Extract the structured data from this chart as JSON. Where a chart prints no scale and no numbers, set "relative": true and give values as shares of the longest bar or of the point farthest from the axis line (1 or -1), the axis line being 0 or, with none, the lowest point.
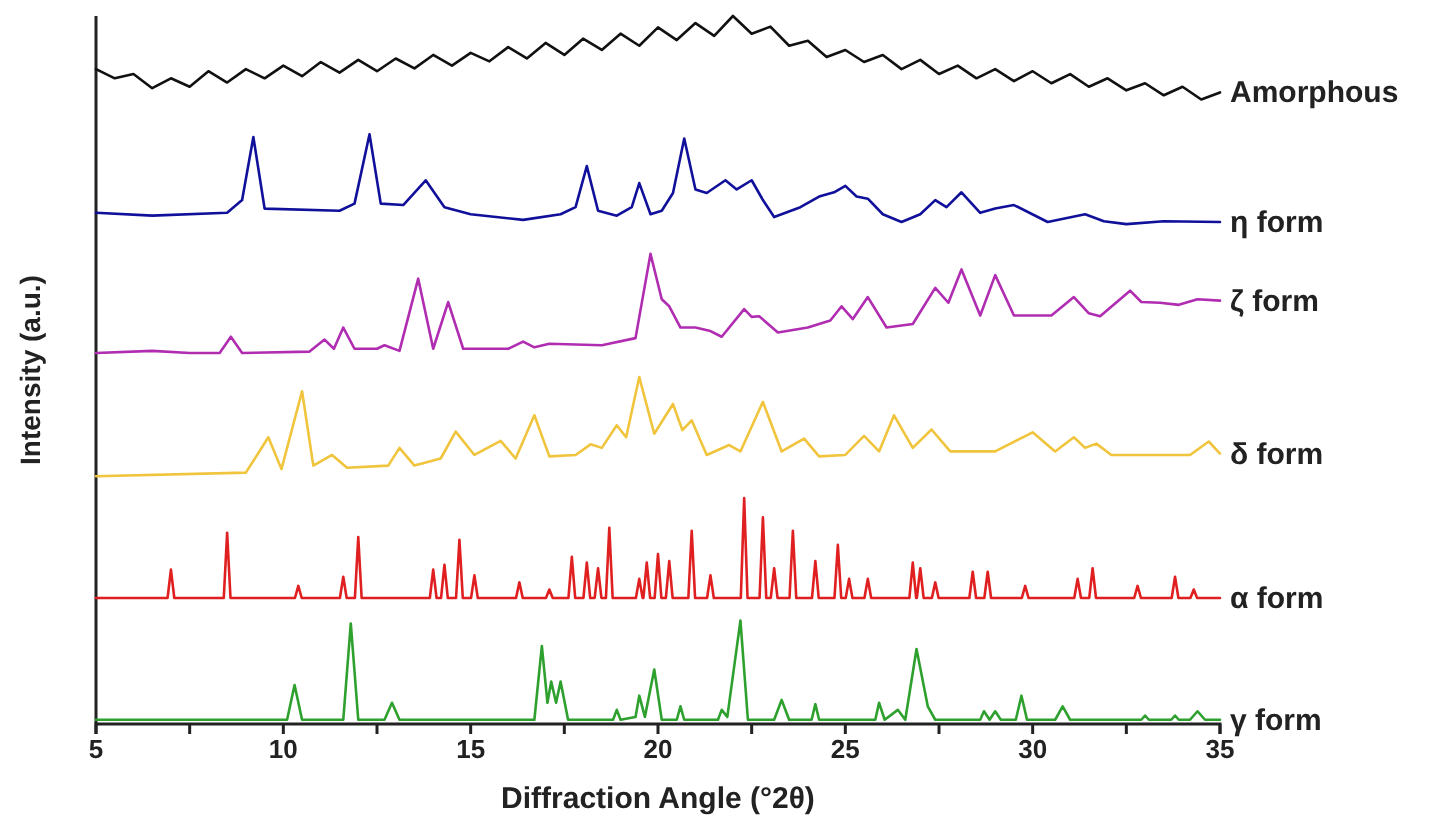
{
  "chart_data": {
    "type": "line",
    "relative": true,
    "xlabel": "Diffraction Angle (°2θ)",
    "ylabel": "Intensity (a.u.)",
    "xlim": [
      5,
      35
    ],
    "xticks": [
      5,
      {
        "value": 7.5,
        "label": null
      },
      10,
      {
        "value": 12.5,
        "label": null
      },
      15,
      {
        "value": 17.5,
        "label": null
      },
      20,
      {
        "value": 22.5,
        "label": null
      },
      25,
      {
        "value": 27.5,
        "label": null
      },
      30,
      {
        "value": 32.5,
        "label": null
      },
      35
    ],
    "series": [
      {
        "name": "Amorphous",
        "color": "#111111",
        "x": [
          5,
          5.5,
          6,
          6.5,
          7,
          7.5,
          8,
          8.5,
          9,
          9.5,
          10,
          10.5,
          11,
          11.5,
          12,
          12.5,
          13,
          13.5,
          14,
          14.5,
          15,
          15.5,
          16,
          16.5,
          17,
          17.5,
          18,
          18.5,
          19,
          19.5,
          20,
          20.5,
          21,
          21.5,
          22,
          22.5,
          23,
          23.5,
          24,
          24.5,
          25,
          25.5,
          26,
          26.5,
          27,
          27.5,
          28,
          28.5,
          29,
          29.5,
          30,
          30.5,
          31,
          31.5,
          32,
          32.5,
          33,
          33.5,
          34,
          34.5,
          35
        ],
        "values": [
          0.925,
          0.912,
          0.918,
          0.898,
          0.912,
          0.9,
          0.922,
          0.906,
          0.925,
          0.912,
          0.93,
          0.915,
          0.935,
          0.92,
          0.938,
          0.922,
          0.94,
          0.926,
          0.945,
          0.93,
          0.948,
          0.936,
          0.956,
          0.94,
          0.962,
          0.945,
          0.968,
          0.952,
          0.975,
          0.958,
          0.984,
          0.966,
          0.99,
          0.972,
          1.0,
          0.975,
          0.985,
          0.958,
          0.965,
          0.942,
          0.952,
          0.935,
          0.945,
          0.925,
          0.938,
          0.918,
          0.93,
          0.912,
          0.925,
          0.908,
          0.922,
          0.905,
          0.918,
          0.9,
          0.912,
          0.895,
          0.905,
          0.888,
          0.9,
          0.882,
          0.892
        ]
      },
      {
        "name": "η form",
        "color": "#10109a",
        "x": [
          5,
          6.5,
          8.5,
          8.9,
          9.2,
          9.5,
          11.5,
          11.9,
          12.3,
          12.6,
          13.2,
          13.8,
          14.3,
          15.0,
          16.4,
          17.4,
          17.8,
          18.1,
          18.4,
          18.9,
          19.3,
          19.5,
          19.8,
          20.1,
          20.4,
          20.7,
          21.0,
          21.3,
          21.8,
          22.1,
          22.5,
          22.8,
          23.1,
          23.8,
          24.3,
          24.7,
          25.0,
          25.3,
          25.6,
          26.0,
          26.5,
          27.0,
          27.4,
          27.7,
          28.1,
          28.6,
          29.0,
          29.5,
          30.4,
          31.4,
          31.9,
          32.5,
          33.5,
          35
        ],
        "values": [
          0.722,
          0.718,
          0.722,
          0.74,
          0.829,
          0.728,
          0.725,
          0.735,
          0.833,
          0.735,
          0.733,
          0.768,
          0.73,
          0.72,
          0.712,
          0.72,
          0.73,
          0.788,
          0.725,
          0.718,
          0.73,
          0.764,
          0.72,
          0.725,
          0.75,
          0.827,
          0.755,
          0.75,
          0.768,
          0.755,
          0.768,
          0.74,
          0.716,
          0.73,
          0.745,
          0.751,
          0.76,
          0.745,
          0.742,
          0.72,
          0.709,
          0.72,
          0.74,
          0.73,
          0.751,
          0.722,
          0.728,
          0.733,
          0.709,
          0.72,
          0.71,
          0.706,
          0.71,
          0.709
        ]
      },
      {
        "name": "ζ form",
        "color": "#b02cb0",
        "x": [
          5,
          6.5,
          7.5,
          8.3,
          8.6,
          8.9,
          10.7,
          11.1,
          11.35,
          11.6,
          11.9,
          12.5,
          12.7,
          13.1,
          13.6,
          14.0,
          14.4,
          14.8,
          16.0,
          16.4,
          16.7,
          17.1,
          18.5,
          19.4,
          19.8,
          20.1,
          20.3,
          20.6,
          21.0,
          21.4,
          21.7,
          22.3,
          22.5,
          22.7,
          23.2,
          24.0,
          24.6,
          24.9,
          25.2,
          25.6,
          26.1,
          26.8,
          27.4,
          27.75,
          28.1,
          28.6,
          29.0,
          29.5,
          30.5,
          31.1,
          31.5,
          31.8,
          32.6,
          32.9,
          33.4,
          33.9,
          34.4,
          35
        ],
        "values": [
          0.524,
          0.527,
          0.524,
          0.524,
          0.547,
          0.524,
          0.526,
          0.543,
          0.53,
          0.56,
          0.53,
          0.53,
          0.535,
          0.527,
          0.629,
          0.53,
          0.596,
          0.53,
          0.53,
          0.54,
          0.532,
          0.537,
          0.535,
          0.545,
          0.664,
          0.6,
          0.59,
          0.56,
          0.56,
          0.555,
          0.547,
          0.586,
          0.575,
          0.576,
          0.553,
          0.56,
          0.57,
          0.59,
          0.572,
          0.603,
          0.56,
          0.565,
          0.616,
          0.595,
          0.642,
          0.577,
          0.634,
          0.577,
          0.577,
          0.603,
          0.58,
          0.576,
          0.612,
          0.596,
          0.595,
          0.592,
          0.6,
          0.598
        ]
      },
      {
        "name": "δ form",
        "color": "#f0c43c",
        "x": [
          5,
          9.0,
          9.6,
          9.95,
          10.5,
          10.8,
          11.3,
          11.7,
          12.8,
          13.1,
          13.5,
          14.2,
          14.6,
          15.1,
          15.8,
          16.2,
          16.7,
          17.1,
          17.8,
          18.2,
          18.5,
          18.9,
          19.15,
          19.5,
          19.9,
          20.4,
          20.65,
          20.9,
          21.3,
          21.9,
          22.2,
          22.8,
          23.3,
          23.9,
          24.3,
          25.0,
          25.5,
          25.9,
          26.3,
          26.8,
          27.3,
          27.8,
          29.0,
          30.0,
          30.6,
          31.1,
          31.4,
          31.7,
          32.1,
          34.2,
          34.7,
          35
        ],
        "values": [
          0.35,
          0.355,
          0.405,
          0.36,
          0.47,
          0.365,
          0.38,
          0.362,
          0.365,
          0.39,
          0.365,
          0.375,
          0.413,
          0.38,
          0.4,
          0.375,
          0.436,
          0.378,
          0.38,
          0.395,
          0.39,
          0.422,
          0.405,
          0.49,
          0.41,
          0.452,
          0.415,
          0.429,
          0.38,
          0.394,
          0.385,
          0.455,
          0.385,
          0.403,
          0.378,
          0.38,
          0.407,
          0.385,
          0.436,
          0.39,
          0.416,
          0.385,
          0.385,
          0.412,
          0.385,
          0.405,
          0.39,
          0.396,
          0.38,
          0.38,
          0.399,
          0.382
        ]
      },
      {
        "name": "α form",
        "color": "#e02020",
        "x": [
          5,
          6.91,
          7.0,
          7.09,
          8.41,
          8.5,
          8.59,
          10.31,
          10.4,
          10.49,
          11.51,
          11.6,
          11.69,
          11.91,
          12.0,
          12.09,
          13.91,
          14.0,
          14.09,
          14.21,
          14.3,
          14.39,
          14.61,
          14.7,
          14.79,
          15.01,
          15.1,
          15.19,
          16.21,
          16.3,
          16.39,
          17.01,
          17.1,
          17.19,
          17.61,
          17.7,
          17.79,
          18.01,
          18.1,
          18.19,
          18.31,
          18.4,
          18.49,
          18.61,
          18.7,
          18.79,
          19.41,
          19.5,
          19.59,
          19.61,
          19.7,
          19.79,
          19.91,
          20.0,
          20.09,
          20.21,
          20.3,
          20.39,
          20.81,
          20.9,
          20.99,
          21.31,
          21.4,
          21.49,
          22.21,
          22.3,
          22.39,
          22.71,
          22.8,
          22.89,
          23.01,
          23.1,
          23.19,
          23.51,
          23.6,
          23.69,
          24.11,
          24.2,
          24.29,
          24.71,
          24.8,
          24.89,
          25.01,
          25.1,
          25.19,
          25.51,
          25.6,
          25.69,
          26.71,
          26.8,
          26.89,
          26.91,
          27.0,
          27.09,
          27.31,
          27.4,
          27.49,
          28.31,
          28.4,
          28.49,
          28.71,
          28.8,
          28.89,
          29.71,
          29.8,
          29.89,
          31.11,
          31.2,
          31.29,
          31.51,
          31.6,
          31.69,
          32.71,
          32.8,
          32.89,
          33.71,
          33.8,
          33.89,
          34.21,
          34.3,
          34.39,
          35
        ],
        "values": [
          0.178,
          0.178,
          0.218,
          0.178,
          0.178,
          0.27,
          0.178,
          0.178,
          0.195,
          0.178,
          0.178,
          0.208,
          0.178,
          0.178,
          0.264,
          0.178,
          0.178,
          0.218,
          0.178,
          0.178,
          0.225,
          0.178,
          0.178,
          0.26,
          0.178,
          0.178,
          0.21,
          0.178,
          0.178,
          0.2,
          0.178,
          0.178,
          0.19,
          0.178,
          0.178,
          0.236,
          0.178,
          0.178,
          0.228,
          0.178,
          0.178,
          0.22,
          0.178,
          0.178,
          0.277,
          0.178,
          0.178,
          0.205,
          0.178,
          0.178,
          0.228,
          0.178,
          0.178,
          0.24,
          0.178,
          0.178,
          0.23,
          0.178,
          0.178,
          0.273,
          0.178,
          0.178,
          0.21,
          0.178,
          0.178,
          0.319,
          0.178,
          0.178,
          0.292,
          0.178,
          0.178,
          0.22,
          0.178,
          0.178,
          0.273,
          0.178,
          0.178,
          0.23,
          0.178,
          0.178,
          0.253,
          0.178,
          0.178,
          0.205,
          0.178,
          0.178,
          0.205,
          0.178,
          0.178,
          0.228,
          0.178,
          0.178,
          0.22,
          0.178,
          0.178,
          0.2,
          0.178,
          0.178,
          0.215,
          0.178,
          0.178,
          0.215,
          0.178,
          0.178,
          0.195,
          0.178,
          0.178,
          0.205,
          0.178,
          0.178,
          0.22,
          0.178,
          0.178,
          0.195,
          0.178,
          0.178,
          0.208,
          0.178,
          0.178,
          0.19,
          0.178,
          0.178
        ]
      },
      {
        "name": "γ form",
        "color": "#2ea02e",
        "x": [
          5,
          10.1,
          10.3,
          10.5,
          11.6,
          11.8,
          12.0,
          12.7,
          12.9,
          13.1,
          16.7,
          16.9,
          17.05,
          17.15,
          17.28,
          17.4,
          17.6,
          18.8,
          18.9,
          19.0,
          19.4,
          19.5,
          19.65,
          19.9,
          20.1,
          20.5,
          20.6,
          20.7,
          21.6,
          21.7,
          21.85,
          22.2,
          22.4,
          23.1,
          23.3,
          23.5,
          24.1,
          24.2,
          24.3,
          25.8,
          25.9,
          26.05,
          26.4,
          26.6,
          26.9,
          27.2,
          27.4,
          28.6,
          28.7,
          28.85,
          29.0,
          29.15,
          29.55,
          29.7,
          29.85,
          30.6,
          30.8,
          31.0,
          32.9,
          33.0,
          33.1,
          33.7,
          33.8,
          33.9,
          34.2,
          34.4,
          34.6,
          35
        ],
        "values": [
          0.006,
          0.006,
          0.055,
          0.006,
          0.006,
          0.142,
          0.006,
          0.006,
          0.03,
          0.006,
          0.006,
          0.11,
          0.03,
          0.06,
          0.03,
          0.06,
          0.006,
          0.006,
          0.02,
          0.006,
          0.01,
          0.04,
          0.01,
          0.077,
          0.006,
          0.006,
          0.025,
          0.006,
          0.006,
          0.02,
          0.01,
          0.146,
          0.006,
          0.006,
          0.034,
          0.006,
          0.006,
          0.028,
          0.006,
          0.006,
          0.03,
          0.006,
          0.02,
          0.006,
          0.106,
          0.025,
          0.006,
          0.006,
          0.018,
          0.006,
          0.018,
          0.006,
          0.006,
          0.04,
          0.006,
          0.006,
          0.025,
          0.006,
          0.006,
          0.012,
          0.006,
          0.006,
          0.012,
          0.006,
          0.006,
          0.018,
          0.006,
          0.006
        ]
      }
    ]
  }
}
